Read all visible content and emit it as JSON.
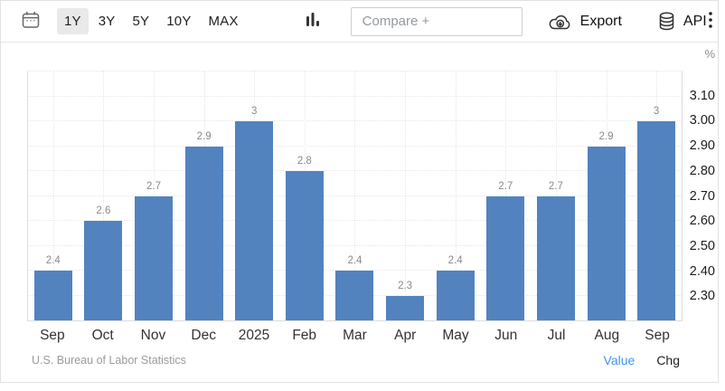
{
  "toolbar": {
    "range_buttons": [
      {
        "label": "1Y",
        "selected": true
      },
      {
        "label": "3Y",
        "selected": false
      },
      {
        "label": "5Y",
        "selected": false
      },
      {
        "label": "10Y",
        "selected": false
      },
      {
        "label": "MAX",
        "selected": false
      }
    ],
    "compare_placeholder": "Compare +",
    "export_label": "Export",
    "api_label": "API",
    "icons": [
      "calendar-icon",
      "bar-chart-icon",
      "cloud-download-icon",
      "database-icon",
      "kebab-menu-icon"
    ]
  },
  "chart_data": {
    "type": "bar",
    "title": "",
    "unit": "%",
    "categories": [
      "Sep",
      "Oct",
      "Nov",
      "Dec",
      "2025",
      "Feb",
      "Mar",
      "Apr",
      "May",
      "Jun",
      "Jul",
      "Aug",
      "Sep"
    ],
    "values": [
      2.4,
      2.6,
      2.7,
      2.9,
      3,
      2.8,
      2.4,
      2.3,
      2.4,
      2.7,
      2.7,
      2.9,
      3
    ],
    "value_labels": [
      "2.4",
      "2.6",
      "2.7",
      "2.9",
      "3",
      "2.8",
      "2.4",
      "2.3",
      "2.4",
      "2.7",
      "2.7",
      "2.9",
      "3"
    ],
    "yticks": [
      2.3,
      2.4,
      2.5,
      2.6,
      2.7,
      2.8,
      2.9,
      3.0,
      3.1
    ],
    "ylim": [
      2.2,
      3.2
    ],
    "grid": true,
    "legend": "none",
    "bar_color": "#5283bf",
    "value_label_color": "#8a8a8a"
  },
  "footer": {
    "source": "U.S. Bureau of Labor Statistics",
    "series_toggles": [
      {
        "label": "Value",
        "active": true
      },
      {
        "label": "Chg",
        "active": false
      }
    ],
    "active_color": "#3e92f0"
  }
}
